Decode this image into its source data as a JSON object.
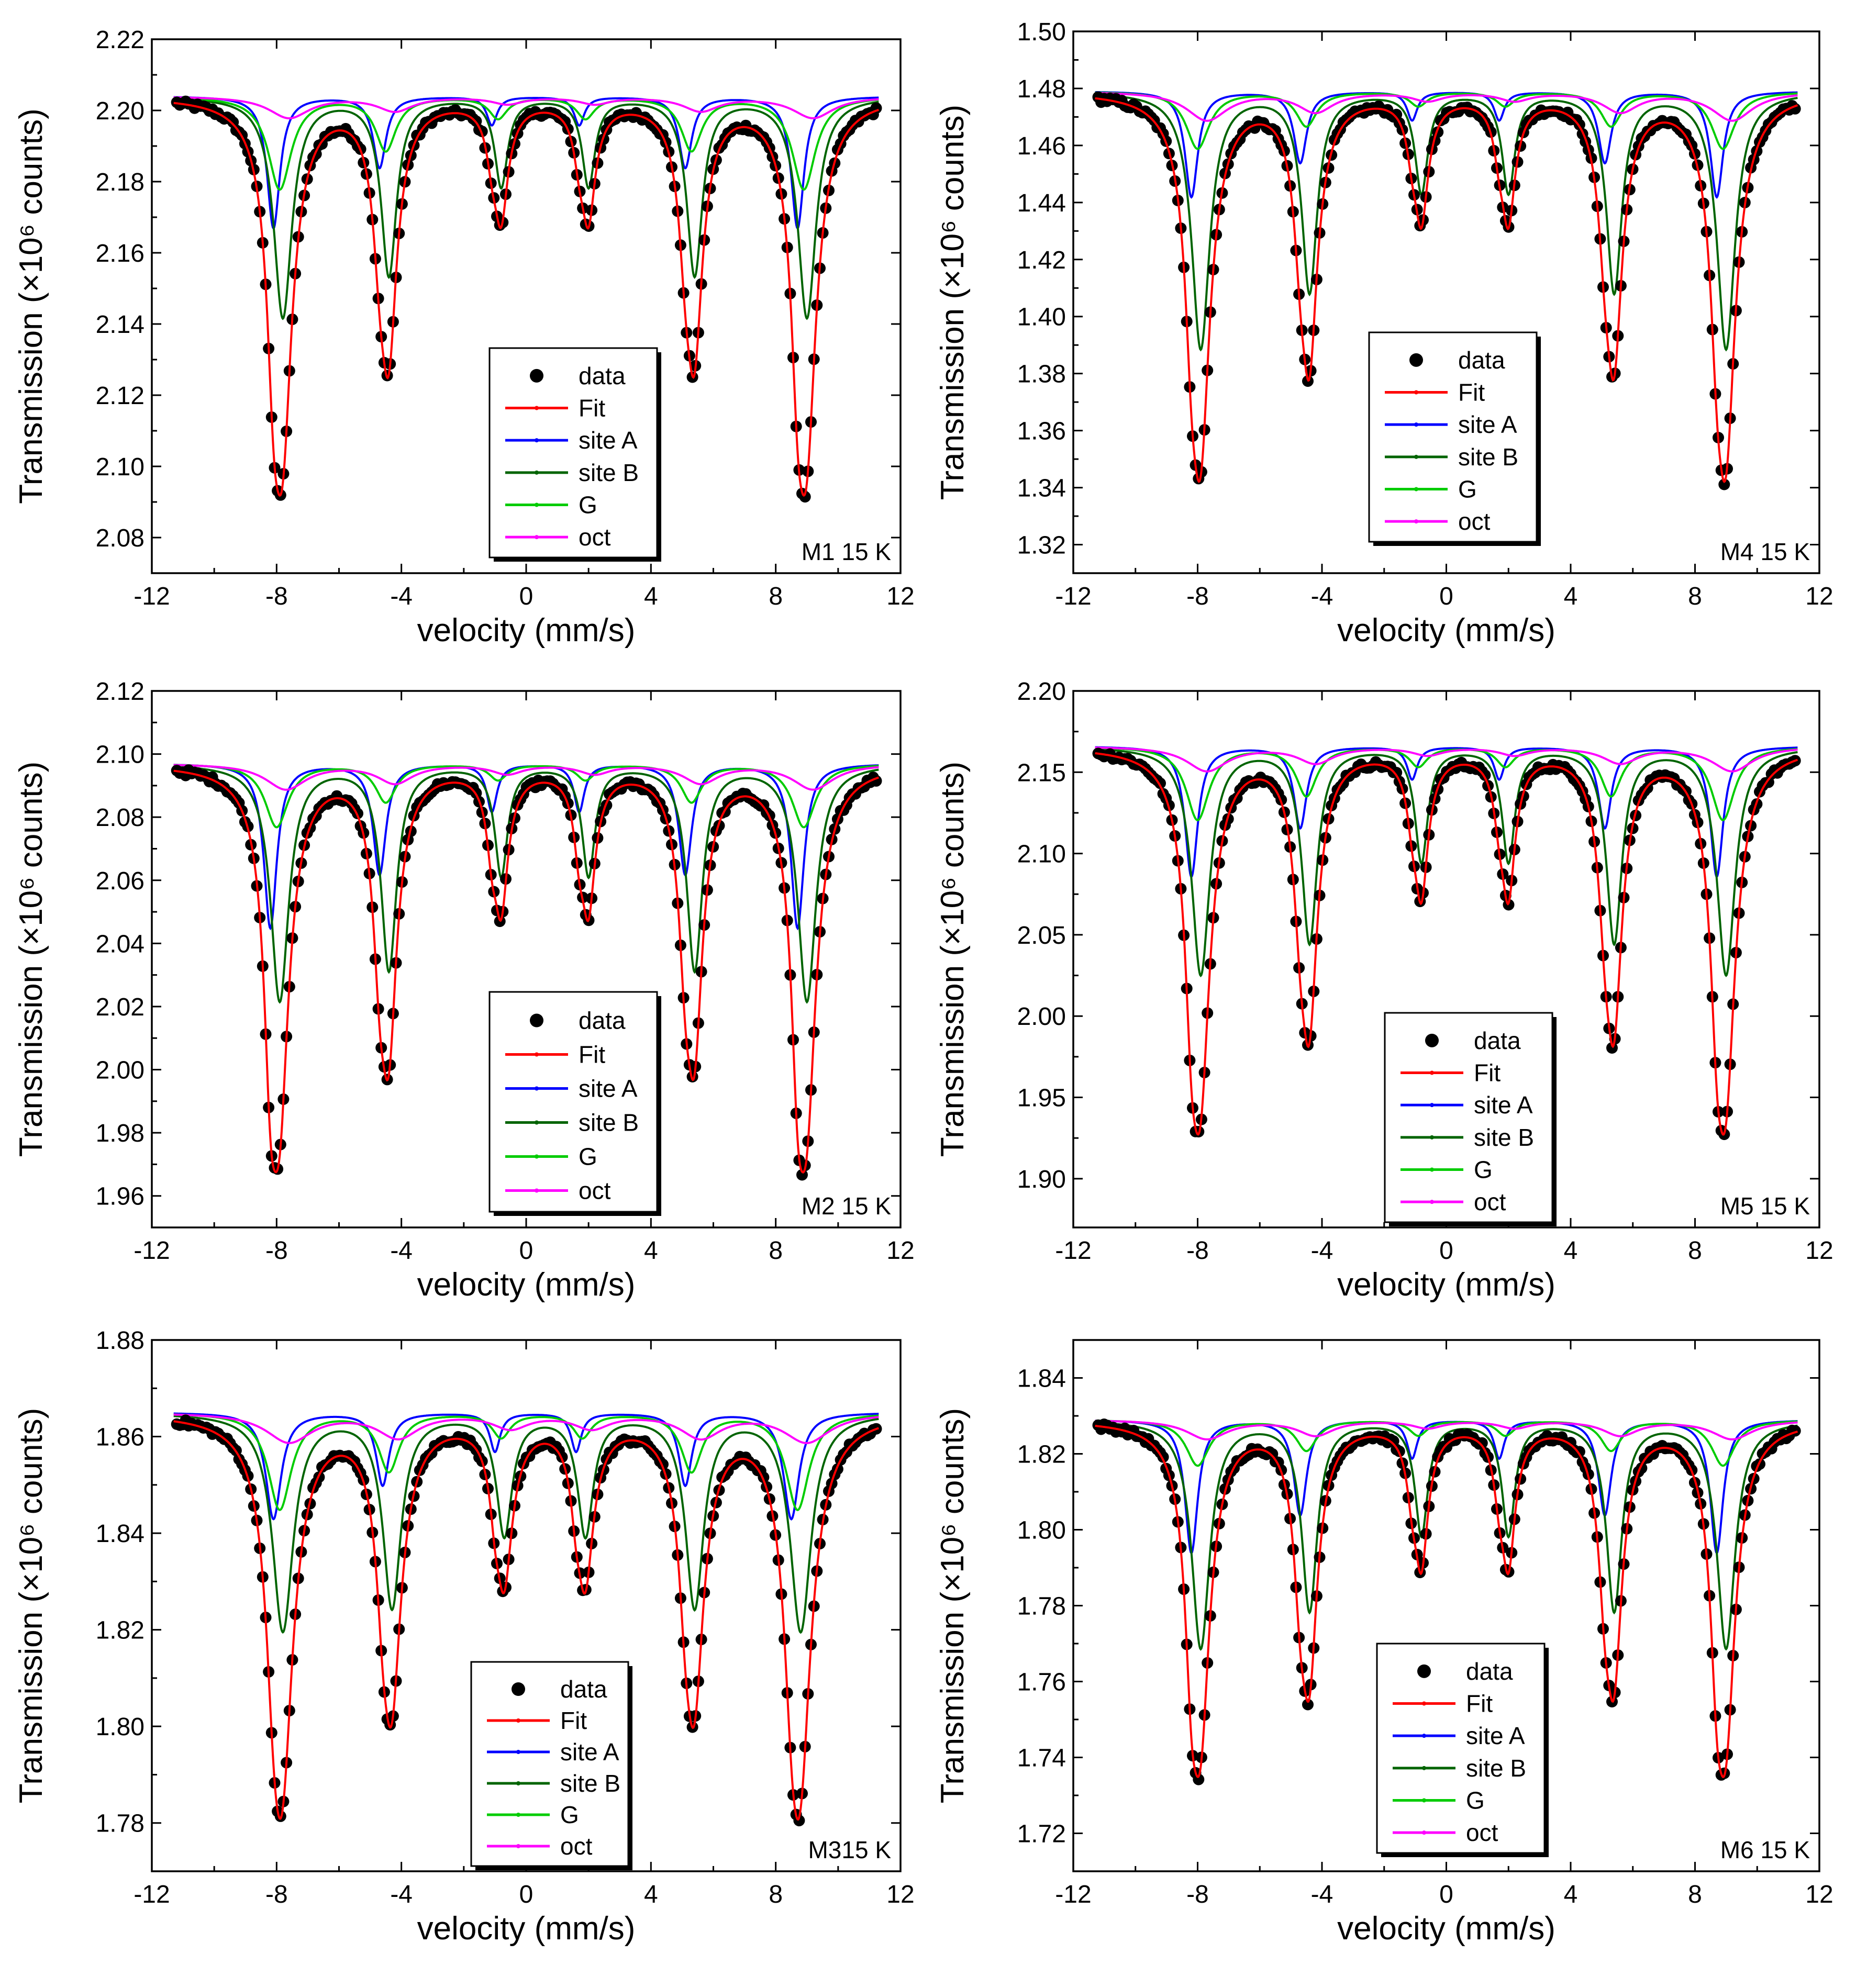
{
  "colors": {
    "data": "#000000",
    "fit": "#ff0000",
    "site_a": "#0000ff",
    "site_b": "#006400",
    "g": "#00cc00",
    "oct": "#ff00ff"
  },
  "chart_data": [
    {
      "type": "scatter",
      "sample_label": "M1 15 K",
      "xlabel": "velocity (mm/s)",
      "ylabel": "Transmission (×10⁶ counts)",
      "xlim": [
        -12,
        12
      ],
      "ylim": [
        2.07,
        2.22
      ],
      "xticks": [
        -12,
        -8,
        -4,
        0,
        4,
        8,
        12
      ],
      "xtick_labels": [
        "-12",
        "-8",
        "-4",
        "0",
        "4",
        "8",
        "12"
      ],
      "yticks": [
        2.08,
        2.1,
        2.12,
        2.14,
        2.16,
        2.18,
        2.2,
        2.22
      ],
      "ytick_labels": [
        "2.08",
        "2.10",
        "2.12",
        "2.14",
        "2.16",
        "2.18",
        "2.20",
        "2.22"
      ],
      "legend": [
        "data",
        "Fit",
        "site A",
        "site B",
        "G",
        "oct"
      ],
      "legend_position": "center-right",
      "baseline": 2.204,
      "peak_positions": [
        -7.9,
        -4.5,
        -0.9,
        1.9,
        5.3,
        8.9
      ],
      "series": [
        {
          "name": "site A",
          "widths": [
            0.25,
            0.25,
            0.2,
            0.2,
            0.25,
            0.25
          ],
          "depths": [
            0.037,
            0.02,
            0.008,
            0.008,
            0.02,
            0.037
          ],
          "shift": -0.2
        },
        {
          "name": "site B",
          "widths": [
            0.35,
            0.3,
            0.25,
            0.25,
            0.3,
            0.35
          ],
          "depths": [
            0.062,
            0.05,
            0.025,
            0.025,
            0.05,
            0.062
          ],
          "shift": 0.1
        },
        {
          "name": "G",
          "widths": [
            0.45,
            0.4,
            0.35,
            0.35,
            0.4,
            0.45
          ],
          "depths": [
            0.026,
            0.015,
            0.006,
            0.006,
            0.015,
            0.026
          ],
          "shift": 0.0
        },
        {
          "name": "oct",
          "widths": [
            0.8,
            0.7,
            0.6,
            0.6,
            0.7,
            0.8
          ],
          "depths": [
            0.006,
            0.004,
            0.002,
            0.002,
            0.004,
            0.006
          ],
          "shift": 0.3
        }
      ]
    },
    {
      "type": "scatter",
      "sample_label": "M4 15 K",
      "xlabel": "velocity (mm/s)",
      "ylabel": "Transmission (×10⁶ counts)",
      "xlim": [
        -12,
        12
      ],
      "ylim": [
        1.31,
        1.5
      ],
      "xticks": [
        -12,
        -8,
        -4,
        0,
        4,
        8,
        12
      ],
      "xtick_labels": [
        "-12",
        "-8",
        "-4",
        "0",
        "4",
        "8",
        "12"
      ],
      "yticks": [
        1.32,
        1.34,
        1.36,
        1.38,
        1.4,
        1.42,
        1.44,
        1.46,
        1.48,
        1.5
      ],
      "ytick_labels": [
        "1.32",
        "1.34",
        "1.36",
        "1.38",
        "1.40",
        "1.42",
        "1.44",
        "1.46",
        "1.48",
        "1.50"
      ],
      "legend": [
        "data",
        "Fit",
        "site A",
        "site B",
        "G",
        "oct"
      ],
      "legend_position": "center-right",
      "baseline": 1.479,
      "peak_positions": [
        -8.0,
        -4.5,
        -0.9,
        1.9,
        5.3,
        8.9
      ],
      "series": [
        {
          "name": "site A",
          "widths": [
            0.25,
            0.25,
            0.2,
            0.2,
            0.25,
            0.25
          ],
          "depths": [
            0.037,
            0.025,
            0.01,
            0.01,
            0.025,
            0.037
          ],
          "shift": -0.2
        },
        {
          "name": "site B",
          "widths": [
            0.35,
            0.3,
            0.25,
            0.25,
            0.3,
            0.35
          ],
          "depths": [
            0.09,
            0.07,
            0.035,
            0.035,
            0.07,
            0.09
          ],
          "shift": 0.1
        },
        {
          "name": "G",
          "widths": [
            0.45,
            0.4,
            0.35,
            0.35,
            0.4,
            0.45
          ],
          "depths": [
            0.02,
            0.012,
            0.005,
            0.005,
            0.012,
            0.02
          ],
          "shift": 0.0
        },
        {
          "name": "oct",
          "widths": [
            0.8,
            0.7,
            0.6,
            0.6,
            0.7,
            0.8
          ],
          "depths": [
            0.01,
            0.007,
            0.003,
            0.003,
            0.007,
            0.01
          ],
          "shift": 0.3
        }
      ]
    },
    {
      "type": "scatter",
      "sample_label": "M2 15 K",
      "xlabel": "velocity (mm/s)",
      "ylabel": "Transmission (×10⁶ counts)",
      "xlim": [
        -12,
        12
      ],
      "ylim": [
        1.95,
        2.12
      ],
      "xticks": [
        -12,
        -8,
        -4,
        0,
        4,
        8,
        12
      ],
      "xtick_labels": [
        "-12",
        "-8",
        "-4",
        "0",
        "4",
        "8",
        "12"
      ],
      "yticks": [
        1.96,
        1.98,
        2.0,
        2.02,
        2.04,
        2.06,
        2.08,
        2.1,
        2.12
      ],
      "ytick_labels": [
        "1.96",
        "1.98",
        "2.00",
        "2.02",
        "2.04",
        "2.06",
        "2.08",
        "2.10",
        "2.12"
      ],
      "legend": [
        "data",
        "Fit",
        "site A",
        "site B",
        "G",
        "oct"
      ],
      "legend_position": "center-right",
      "baseline": 2.097,
      "peak_positions": [
        -8.0,
        -4.5,
        -0.9,
        1.9,
        5.3,
        8.9
      ],
      "series": [
        {
          "name": "site A",
          "widths": [
            0.25,
            0.25,
            0.2,
            0.2,
            0.25,
            0.25
          ],
          "depths": [
            0.052,
            0.035,
            0.015,
            0.015,
            0.035,
            0.052
          ],
          "shift": -0.2
        },
        {
          "name": "site B",
          "widths": [
            0.35,
            0.3,
            0.25,
            0.25,
            0.3,
            0.35
          ],
          "depths": [
            0.075,
            0.065,
            0.035,
            0.035,
            0.065,
            0.075
          ],
          "shift": 0.1
        },
        {
          "name": "G",
          "widths": [
            0.45,
            0.4,
            0.35,
            0.35,
            0.4,
            0.45
          ],
          "depths": [
            0.02,
            0.012,
            0.005,
            0.005,
            0.012,
            0.02
          ],
          "shift": 0.0
        },
        {
          "name": "oct",
          "widths": [
            0.8,
            0.7,
            0.6,
            0.6,
            0.7,
            0.8
          ],
          "depths": [
            0.008,
            0.006,
            0.003,
            0.003,
            0.006,
            0.008
          ],
          "shift": 0.3
        }
      ]
    },
    {
      "type": "scatter",
      "sample_label": "M5 15 K",
      "xlabel": "velocity (mm/s)",
      "ylabel": "Transmission (×10⁶ counts)",
      "xlim": [
        -12,
        12
      ],
      "ylim": [
        1.87,
        2.2
      ],
      "xticks": [
        -12,
        -8,
        -4,
        0,
        4,
        8,
        12
      ],
      "xtick_labels": [
        "-12",
        "-8",
        "-4",
        "0",
        "4",
        "8",
        "12"
      ],
      "yticks": [
        1.9,
        1.95,
        2.0,
        2.05,
        2.1,
        2.15,
        2.2
      ],
      "ytick_labels": [
        "1.90",
        "1.95",
        "2.00",
        "2.05",
        "2.10",
        "2.15",
        "2.20"
      ],
      "legend": [
        "data",
        "Fit",
        "site A",
        "site B",
        "G",
        "oct"
      ],
      "legend_position": "center-right",
      "baseline": 2.166,
      "peak_positions": [
        -8.0,
        -4.5,
        -0.9,
        1.9,
        5.3,
        8.9
      ],
      "series": [
        {
          "name": "site A",
          "widths": [
            0.25,
            0.25,
            0.2,
            0.2,
            0.25,
            0.25
          ],
          "depths": [
            0.08,
            0.05,
            0.02,
            0.02,
            0.05,
            0.08
          ],
          "shift": -0.2
        },
        {
          "name": "site B",
          "widths": [
            0.35,
            0.3,
            0.25,
            0.25,
            0.3,
            0.35
          ],
          "depths": [
            0.14,
            0.12,
            0.07,
            0.07,
            0.12,
            0.14
          ],
          "shift": 0.1
        },
        {
          "name": "G",
          "widths": [
            0.45,
            0.4,
            0.35,
            0.35,
            0.4,
            0.45
          ],
          "depths": [
            0.045,
            0.03,
            0.012,
            0.012,
            0.03,
            0.045
          ],
          "shift": 0.0
        },
        {
          "name": "oct",
          "widths": [
            0.8,
            0.7,
            0.6,
            0.6,
            0.7,
            0.8
          ],
          "depths": [
            0.015,
            0.01,
            0.005,
            0.005,
            0.01,
            0.015
          ],
          "shift": 0.3
        }
      ]
    },
    {
      "type": "scatter",
      "sample_label": "M315 K",
      "xlabel": "velocity (mm/s)",
      "ylabel": "Transmission (×10⁶ counts)",
      "xlim": [
        -12,
        12
      ],
      "ylim": [
        1.77,
        1.88
      ],
      "xticks": [
        -12,
        -8,
        -4,
        0,
        4,
        8,
        12
      ],
      "xtick_labels": [
        "-12",
        "-8",
        "-4",
        "0",
        "4",
        "8",
        "12"
      ],
      "yticks": [
        1.78,
        1.8,
        1.82,
        1.84,
        1.86,
        1.88
      ],
      "ytick_labels": [
        "1.78",
        "1.80",
        "1.82",
        "1.84",
        "1.86",
        "1.88"
      ],
      "legend": [
        "data",
        "Fit",
        "site A",
        "site B",
        "G",
        "oct"
      ],
      "legend_position": "bottom-center",
      "baseline": 1.865,
      "peak_positions": [
        -7.9,
        -4.4,
        -0.8,
        1.8,
        5.3,
        8.7
      ],
      "series": [
        {
          "name": "site A",
          "widths": [
            0.3,
            0.25,
            0.2,
            0.2,
            0.25,
            0.3
          ],
          "depths": [
            0.022,
            0.015,
            0.008,
            0.008,
            0.015,
            0.022
          ],
          "shift": -0.2
        },
        {
          "name": "site B",
          "widths": [
            0.4,
            0.35,
            0.3,
            0.3,
            0.35,
            0.4
          ],
          "depths": [
            0.045,
            0.04,
            0.025,
            0.025,
            0.04,
            0.045
          ],
          "shift": 0.1
        },
        {
          "name": "G",
          "widths": [
            0.45,
            0.4,
            0.35,
            0.35,
            0.4,
            0.45
          ],
          "depths": [
            0.02,
            0.012,
            0.005,
            0.005,
            0.012,
            0.02
          ],
          "shift": 0.0
        },
        {
          "name": "oct",
          "widths": [
            0.9,
            0.8,
            0.7,
            0.7,
            0.8,
            0.9
          ],
          "depths": [
            0.006,
            0.005,
            0.003,
            0.003,
            0.005,
            0.006
          ],
          "shift": 0.3
        }
      ]
    },
    {
      "type": "scatter",
      "sample_label": "M6 15 K",
      "xlabel": "velocity (mm/s)",
      "ylabel": "Transmission (×10⁶ counts)",
      "xlim": [
        -12,
        12
      ],
      "ylim": [
        1.71,
        1.85
      ],
      "xticks": [
        -12,
        -8,
        -4,
        0,
        4,
        8,
        12
      ],
      "xtick_labels": [
        "-12",
        "-8",
        "-4",
        "0",
        "4",
        "8",
        "12"
      ],
      "yticks": [
        1.72,
        1.74,
        1.76,
        1.78,
        1.8,
        1.82,
        1.84
      ],
      "ytick_labels": [
        "1.72",
        "1.74",
        "1.76",
        "1.78",
        "1.80",
        "1.82",
        "1.84"
      ],
      "legend": [
        "data",
        "Fit",
        "site A",
        "site B",
        "G",
        "oct"
      ],
      "legend_position": "center-right",
      "baseline": 1.829,
      "peak_positions": [
        -8.0,
        -4.5,
        -0.9,
        1.9,
        5.3,
        8.9
      ],
      "series": [
        {
          "name": "site A",
          "widths": [
            0.25,
            0.25,
            0.2,
            0.2,
            0.25,
            0.25
          ],
          "depths": [
            0.035,
            0.025,
            0.01,
            0.01,
            0.025,
            0.035
          ],
          "shift": -0.2
        },
        {
          "name": "site B",
          "widths": [
            0.35,
            0.3,
            0.25,
            0.25,
            0.3,
            0.35
          ],
          "depths": [
            0.06,
            0.05,
            0.03,
            0.03,
            0.05,
            0.06
          ],
          "shift": 0.1
        },
        {
          "name": "G",
          "widths": [
            0.45,
            0.4,
            0.35,
            0.35,
            0.4,
            0.45
          ],
          "depths": [
            0.012,
            0.008,
            0.004,
            0.004,
            0.008,
            0.012
          ],
          "shift": 0.0
        },
        {
          "name": "oct",
          "widths": [
            0.8,
            0.7,
            0.6,
            0.6,
            0.7,
            0.8
          ],
          "depths": [
            0.005,
            0.004,
            0.002,
            0.002,
            0.004,
            0.005
          ],
          "shift": 0.3
        }
      ]
    }
  ]
}
